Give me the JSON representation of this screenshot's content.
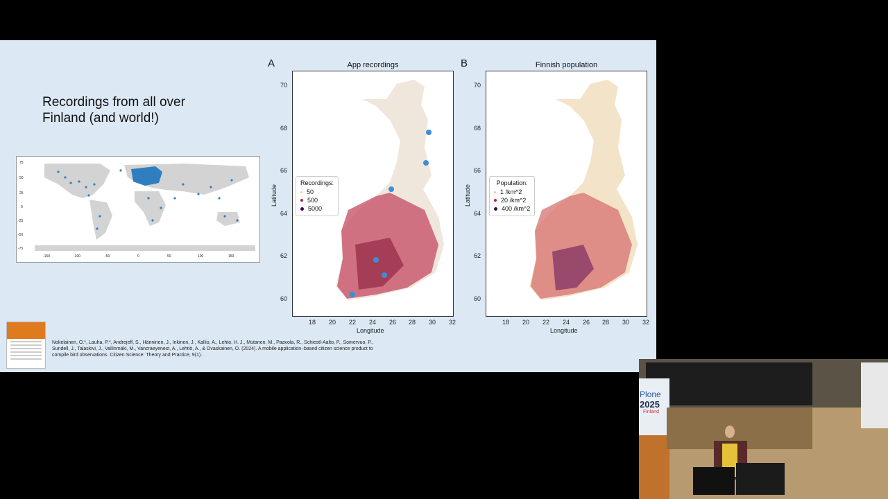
{
  "slide": {
    "headline": "Recordings from all over\nFinland (and world!)",
    "reference": "Nokelainen, O.*, Lauha, P.*, Andrejeff, S., Hänninen, J., Inkinen, J., Kallio, A., Lehto, H. J., Mutanen, M., Paavola, R., Schiestl-Aalto, P., Somervuo, P., Sundell, J., Talaskivi, J., Vallinmäki, M., Vancraeyenest, A., Lehtiö, A., & Ovaskainen, O. (2024). A mobile application–based citizen science product to compile bird observations. Citizen Science: Theory and Practice, 9(1).",
    "world_map": {
      "y_ticks": [
        "75",
        "50",
        "25",
        "0",
        "-25",
        "-50",
        "-75"
      ],
      "x_ticks": [
        "-150",
        "-100",
        "-50",
        "0",
        "50",
        "100",
        "150"
      ]
    },
    "panels": [
      {
        "letter": "A",
        "title": "App recordings",
        "xlabel": "Longitude",
        "ylabel": "Latitude",
        "x_ticks": [
          "18",
          "20",
          "22",
          "24",
          "26",
          "28",
          "30",
          "32"
        ],
        "y_ticks": [
          "70",
          "68",
          "66",
          "64",
          "62",
          "60"
        ],
        "legend_title": "Recordings:",
        "legend": [
          "50",
          "500",
          "5000"
        ]
      },
      {
        "letter": "B",
        "title": "Finnish population",
        "xlabel": "Longitude",
        "ylabel": "Latitude",
        "x_ticks": [
          "18",
          "20",
          "22",
          "24",
          "26",
          "28",
          "30",
          "32"
        ],
        "y_ticks": [
          "70",
          "68",
          "66",
          "64",
          "62",
          "60"
        ],
        "legend_title": "Population:",
        "legend": [
          "1 /km^2",
          "20 /km^2",
          "400 /km^2"
        ]
      }
    ]
  },
  "colors": {
    "slide_bg": "#dce9f5",
    "map_land": "#e8e8e8",
    "heat_light": "#f2c98a",
    "heat_mid": "#b5213e",
    "heat_dark": "#3a0a52",
    "blue_points": "#3a8fd6"
  },
  "webcam": {
    "banner_year": "2025",
    "banner_top": "Plone",
    "banner_sub": "Finland"
  }
}
